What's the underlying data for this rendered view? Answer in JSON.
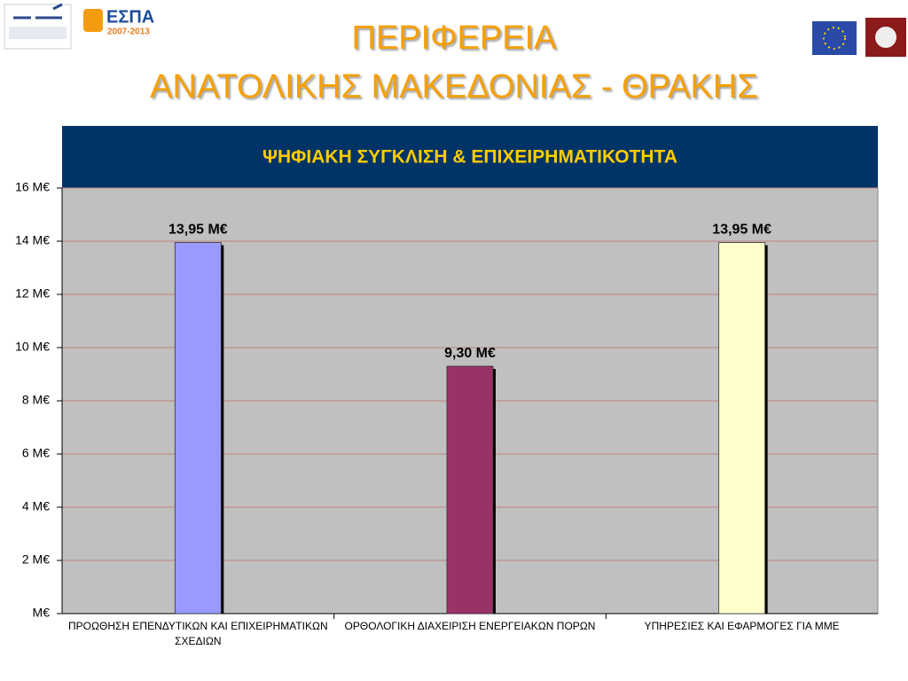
{
  "logos": {
    "espa": "ΕΣΠΑ",
    "espa_years": "2007-2013"
  },
  "slide_title": [
    "ΠΕΡΙΦΕΡΕΙΑ",
    "ΑΝΑΤΟΛΙΚΗΣ ΜΑΚΕΔΟΝΙΑΣ - ΘΡΑΚΗΣ"
  ],
  "chart_data": {
    "type": "bar",
    "title": "ΨΗΦΙΑΚΗ ΣΥΓΚΛΙΣΗ & ΕΠΙΧΕΙΡΗΜΑΤΙΚΟΤΗΤΑ",
    "categories": [
      "ΠΡΟΩΘΗΣΗ ΕΠΕΝΔΥΤΙΚΩΝ ΚΑΙ ΕΠΙΧΕΙΡΗΜΑΤΙΚΩΝ ΣΧΕΔΙΩΝ",
      "ΟΡΘΟΛΟΓΙΚΗ ΔΙΑΧΕΙΡΙΣΗ ΕΝΕΡΓΕΙΑΚΩΝ ΠΟΡΩΝ",
      "ΥΠΗΡΕΣΙΕΣ ΚΑΙ ΕΦΑΡΜΟΓΕΣ ΓΙΑ ΜΜΕ"
    ],
    "values": [
      13.95,
      9.3,
      13.95
    ],
    "value_labels": [
      "13,95 M€",
      "9,30 M€",
      "13,95 M€"
    ],
    "colors": [
      "#9999ff",
      "#993366",
      "#ffffcc"
    ],
    "ylim": [
      0,
      16
    ],
    "yticks": [
      {
        "value": 0,
        "label": "M€"
      },
      {
        "value": 2,
        "label": "2 M€"
      },
      {
        "value": 4,
        "label": "4 M€"
      },
      {
        "value": 6,
        "label": "6 M€"
      },
      {
        "value": 8,
        "label": "8 M€"
      },
      {
        "value": 10,
        "label": "10 M€"
      },
      {
        "value": 12,
        "label": "12 M€"
      },
      {
        "value": 14,
        "label": "14 M€"
      },
      {
        "value": 16,
        "label": "16 M€"
      }
    ],
    "grid": true
  }
}
